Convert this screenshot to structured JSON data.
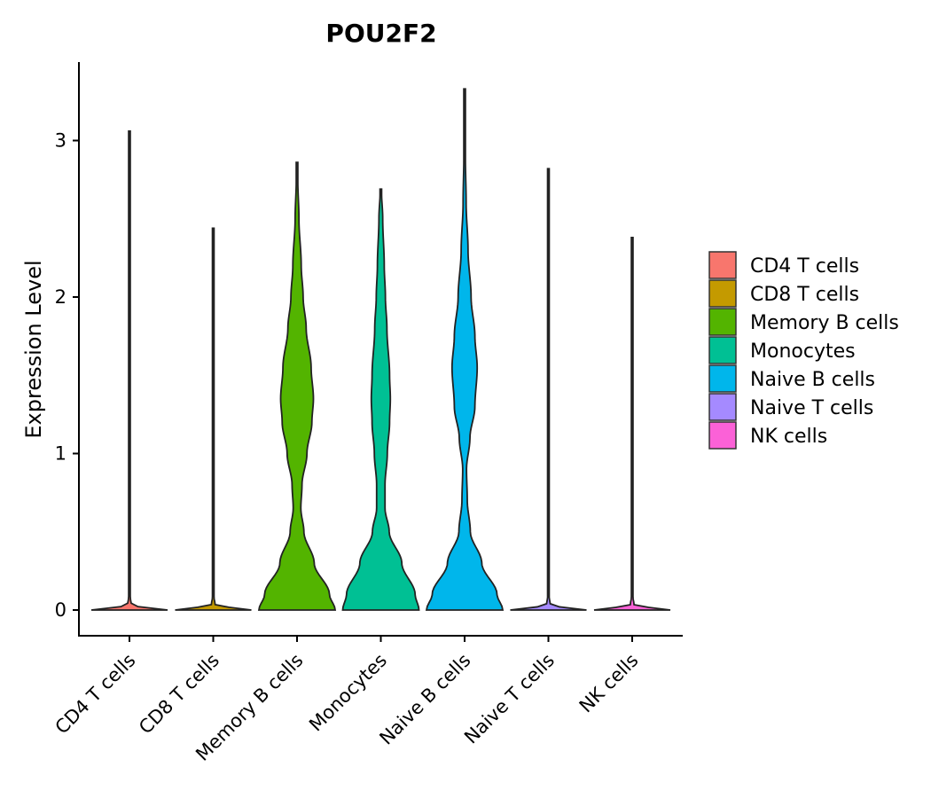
{
  "chart_data": {
    "type": "violin",
    "title": "POU2F2",
    "xlabel": "",
    "ylabel": "Expression Level",
    "ylim": [
      -0.16,
      3.5
    ],
    "yticks": [
      0,
      1,
      2,
      3
    ],
    "ytick_labels": [
      "0",
      "1",
      "2",
      "3"
    ],
    "categories": [
      "CD4 T cells",
      "CD8 T cells",
      "Memory B cells",
      "Monocytes",
      "Naive B cells",
      "Naive T cells",
      "NK cells"
    ],
    "colors": [
      "#F8766D",
      "#C49A00",
      "#53B400",
      "#00C094",
      "#00B6EB",
      "#A58AFF",
      "#FB61D7"
    ],
    "max_values": [
      3.06,
      2.44,
      2.86,
      2.69,
      3.33,
      2.82,
      2.38
    ],
    "density_profiles": [
      [
        [
          0,
          1.0
        ],
        [
          0.03,
          0.05
        ],
        [
          0.1,
          0.008
        ],
        [
          1.0,
          0.004
        ],
        [
          3.06,
          0.002
        ]
      ],
      [
        [
          0,
          1.0
        ],
        [
          0.03,
          0.05
        ],
        [
          0.1,
          0.008
        ],
        [
          1.0,
          0.004
        ],
        [
          2.44,
          0.002
        ]
      ],
      [
        [
          0,
          1.0
        ],
        [
          0.1,
          0.85
        ],
        [
          0.3,
          0.45
        ],
        [
          0.5,
          0.18
        ],
        [
          0.65,
          0.1
        ],
        [
          0.8,
          0.13
        ],
        [
          1.0,
          0.26
        ],
        [
          1.2,
          0.39
        ],
        [
          1.35,
          0.43
        ],
        [
          1.55,
          0.37
        ],
        [
          1.8,
          0.24
        ],
        [
          2.0,
          0.16
        ],
        [
          2.2,
          0.11
        ],
        [
          2.5,
          0.05
        ],
        [
          2.75,
          0.02
        ],
        [
          2.86,
          0.01
        ]
      ],
      [
        [
          0,
          1.0
        ],
        [
          0.1,
          0.9
        ],
        [
          0.3,
          0.55
        ],
        [
          0.5,
          0.22
        ],
        [
          0.65,
          0.11
        ],
        [
          0.8,
          0.11
        ],
        [
          1.0,
          0.17
        ],
        [
          1.2,
          0.23
        ],
        [
          1.35,
          0.25
        ],
        [
          1.5,
          0.23
        ],
        [
          1.8,
          0.16
        ],
        [
          2.0,
          0.12
        ],
        [
          2.2,
          0.09
        ],
        [
          2.5,
          0.05
        ],
        [
          2.69,
          0.015
        ]
      ],
      [
        [
          0,
          1.0
        ],
        [
          0.1,
          0.85
        ],
        [
          0.3,
          0.45
        ],
        [
          0.5,
          0.15
        ],
        [
          0.7,
          0.07
        ],
        [
          0.9,
          0.05
        ],
        [
          1.1,
          0.14
        ],
        [
          1.3,
          0.27
        ],
        [
          1.55,
          0.33
        ],
        [
          1.75,
          0.27
        ],
        [
          2.0,
          0.17
        ],
        [
          2.3,
          0.09
        ],
        [
          2.6,
          0.04
        ],
        [
          2.9,
          0.02
        ],
        [
          3.1,
          0.01
        ],
        [
          3.33,
          0.004
        ]
      ],
      [
        [
          0,
          1.0
        ],
        [
          0.03,
          0.05
        ],
        [
          0.1,
          0.008
        ],
        [
          1.0,
          0.004
        ],
        [
          2.82,
          0.002
        ]
      ],
      [
        [
          0,
          1.0
        ],
        [
          0.03,
          0.05
        ],
        [
          0.1,
          0.008
        ],
        [
          1.0,
          0.004
        ],
        [
          2.38,
          0.002
        ]
      ]
    ],
    "legend_title": "",
    "legend_position": "right"
  }
}
